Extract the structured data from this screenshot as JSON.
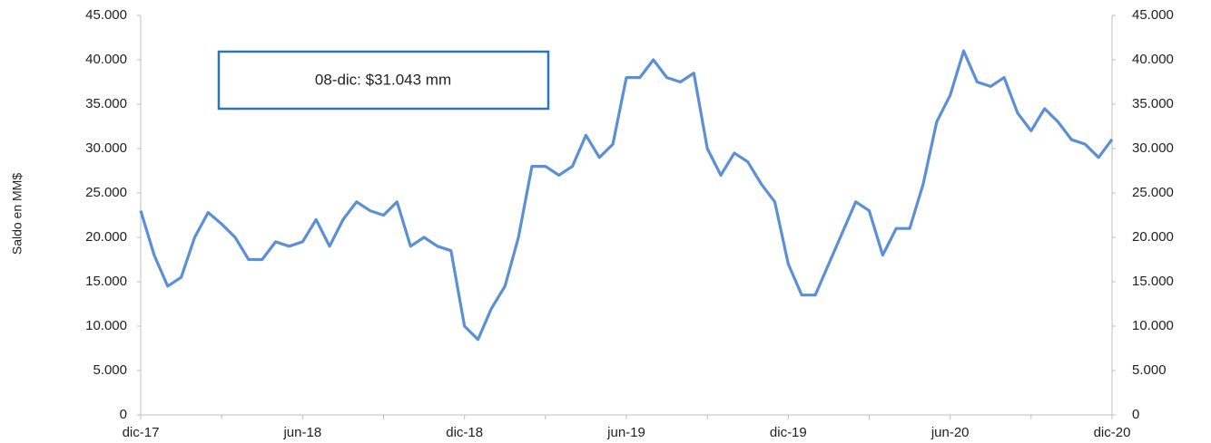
{
  "chart_data": {
    "type": "line",
    "y_label": "Saldo en MM$",
    "annotation": "08-dic: $31.043 mm",
    "categories": [
      "dic-17",
      null,
      null,
      null,
      null,
      null,
      null,
      null,
      null,
      null,
      null,
      null,
      "jun-18",
      null,
      null,
      null,
      null,
      null,
      null,
      null,
      null,
      null,
      null,
      null,
      "dic-18",
      null,
      null,
      null,
      null,
      null,
      null,
      null,
      null,
      null,
      null,
      null,
      "jun-19",
      null,
      null,
      null,
      null,
      null,
      null,
      null,
      null,
      null,
      null,
      null,
      "dic-19",
      null,
      null,
      null,
      null,
      null,
      null,
      null,
      null,
      null,
      null,
      null,
      "jun-20",
      null,
      null,
      null,
      null,
      null,
      null,
      null,
      null,
      null,
      null,
      null,
      "dic-20"
    ],
    "series": [
      {
        "name": "Saldo",
        "color": "#5b8fd6",
        "values": [
          23000,
          18000,
          14500,
          15500,
          20000,
          22800,
          21500,
          20000,
          17500,
          17500,
          19500,
          19000,
          19500,
          22000,
          19000,
          22000,
          24000,
          23000,
          22500,
          24000,
          19000,
          20000,
          19000,
          18500,
          10000,
          8500,
          12000,
          14500,
          20000,
          28000,
          28000,
          27000,
          28000,
          31500,
          29000,
          30500,
          38000,
          38000,
          40000,
          38000,
          37500,
          38500,
          30000,
          27000,
          29500,
          28500,
          26000,
          24000,
          17000,
          13500,
          13500,
          17000,
          20500,
          24000,
          23000,
          18000,
          21000,
          21000,
          26000,
          33000,
          36000,
          41000,
          37500,
          37000,
          38000,
          34000,
          32000,
          34500,
          33000,
          31000,
          30500,
          29000,
          31043
        ]
      }
    ],
    "ylim": [
      0,
      45000
    ],
    "yticks": [
      0,
      {
        "value": 5000,
        "label": "5.000"
      },
      {
        "value": 10000,
        "label": "10.000"
      },
      {
        "value": 15000,
        "label": "15.000"
      },
      {
        "value": 20000,
        "label": "20.000"
      },
      {
        "value": 25000,
        "label": "25.000"
      },
      {
        "value": 30000,
        "label": "30.000"
      },
      {
        "value": 35000,
        "label": "35.000"
      },
      {
        "value": 40000,
        "label": "40.000"
      },
      {
        "value": 45000,
        "label": "45.000"
      }
    ],
    "y2lim": [
      0,
      45000
    ],
    "y2ticks": [
      0,
      {
        "value": 5000,
        "label": "5.000"
      },
      {
        "value": 10000,
        "label": "10.000"
      },
      {
        "value": 15000,
        "label": "15.000"
      },
      {
        "value": 20000,
        "label": "20.000"
      },
      {
        "value": 25000,
        "label": "25.000"
      },
      {
        "value": 30000,
        "label": "30.000"
      },
      {
        "value": 35000,
        "label": "35.000"
      },
      {
        "value": 40000,
        "label": "40.000"
      },
      {
        "value": 45000,
        "label": "45.000"
      }
    ],
    "grid": false
  }
}
